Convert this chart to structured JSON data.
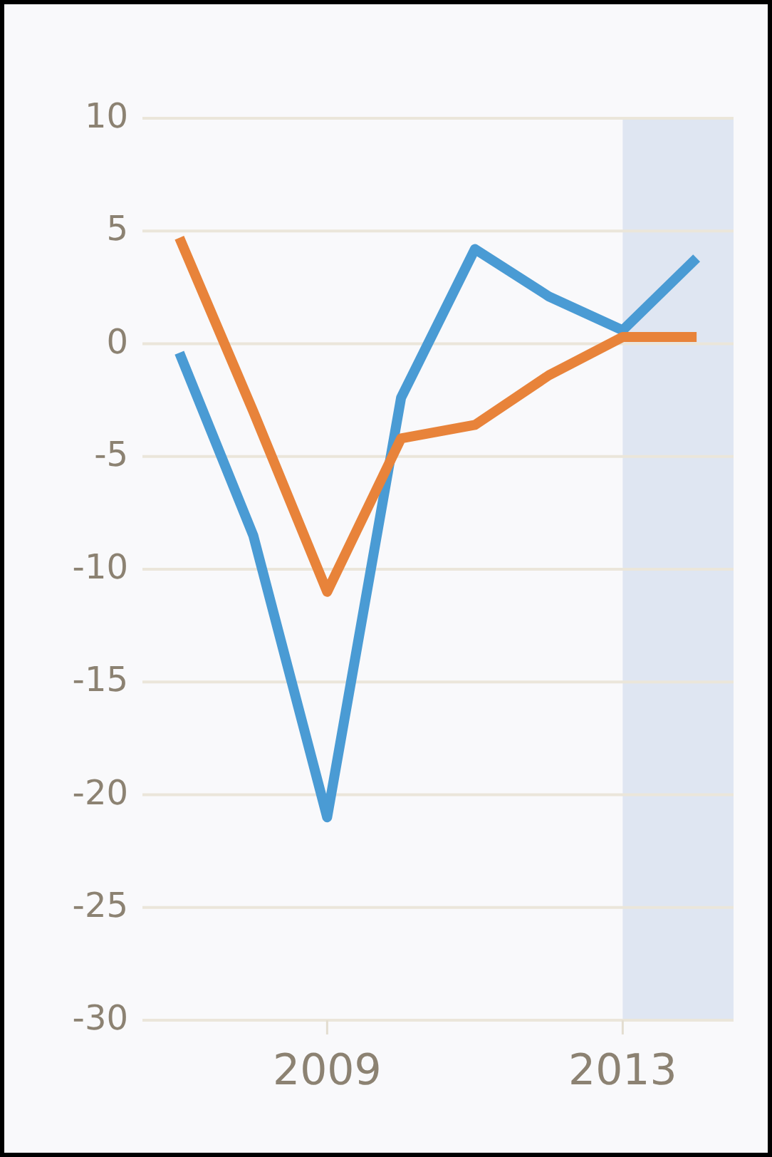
{
  "chart_data": {
    "type": "line",
    "x": [
      2007,
      2008,
      2009,
      2010,
      2011,
      2012,
      2013,
      2014
    ],
    "series": [
      {
        "color": "#4a9bd4",
        "values": [
          -0.4,
          -8.5,
          -21,
          -2.4,
          4.2,
          2.1,
          0.6,
          3.8
        ]
      },
      {
        "color": "#e8833a",
        "values": [
          4.7,
          -3,
          -11,
          -4.2,
          -3.6,
          -1.4,
          0.3,
          0.3
        ]
      }
    ],
    "xlim": [
      2006.5,
      2014.5
    ],
    "xticks": [
      2009,
      2013
    ],
    "ylim": [
      -30,
      10
    ],
    "yticks": [
      -30,
      -25,
      -20,
      -15,
      -10,
      -5,
      0,
      5,
      10
    ],
    "grid": "y",
    "marker": "none",
    "line_style": "solid",
    "bands": [
      {
        "axis": "x",
        "from": 2013,
        "to": 2014.5,
        "color": "#dfe6f2"
      }
    ]
  }
}
